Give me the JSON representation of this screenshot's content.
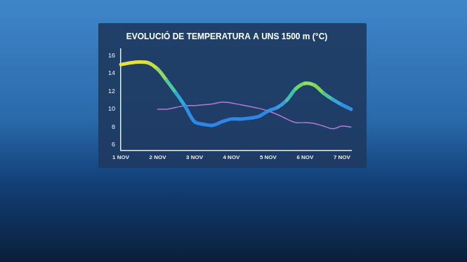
{
  "chart_data": {
    "type": "line",
    "title": "EVOLUCIÓ DE TEMPERATURA A UNS 1500 m (°C)",
    "categories": [
      "1 NOV",
      null,
      null,
      null,
      "2 NOV",
      null,
      null,
      null,
      "3 NOV",
      null,
      null,
      null,
      "4 NOV",
      null,
      null,
      null,
      "5 NOV",
      null,
      null,
      null,
      "6 NOV",
      null,
      null,
      null,
      "7 NOV",
      null
    ],
    "series": [
      {
        "colors": [
          "#e8e03c",
          "#e8e03c",
          "#e2e03e",
          "#c9e045",
          "#8fd86a",
          "#4cc9a0",
          "#2fa8d8",
          "#2f8ee4",
          "#2f86e6",
          "#2f86e6",
          "#2f86e6",
          "#2f86e6",
          "#2f86e6",
          "#2f86e6",
          "#2f86e6",
          "#2f86e6",
          "#3090e2",
          "#3a9be0",
          "#3fc0b0",
          "#6cd66a",
          "#8ee05a",
          "#7ed85e",
          "#4cc49c",
          "#33a8d6",
          "#2f90e4",
          "#2f86e6"
        ],
        "values": [
          15.0,
          15.2,
          15.3,
          15.2,
          14.5,
          13.2,
          11.8,
          10.3,
          8.6,
          8.3,
          8.2,
          8.6,
          8.9,
          8.9,
          9.0,
          9.2,
          9.8,
          10.2,
          11.0,
          12.3,
          12.9,
          12.7,
          11.8,
          11.1,
          10.5,
          10.0
        ]
      },
      {
        "color": "#b57ad6",
        "values": [
          null,
          null,
          null,
          null,
          10.0,
          10.0,
          10.2,
          10.4,
          10.4,
          10.5,
          10.6,
          10.8,
          10.7,
          10.5,
          10.3,
          10.1,
          9.8,
          9.4,
          8.9,
          8.5,
          8.5,
          8.4,
          8.1,
          7.8,
          8.1,
          8.0
        ]
      }
    ],
    "ylim": [
      5.4,
      16.8
    ],
    "yticks": [
      6,
      8,
      10,
      12,
      14,
      16
    ],
    "grid": false
  }
}
